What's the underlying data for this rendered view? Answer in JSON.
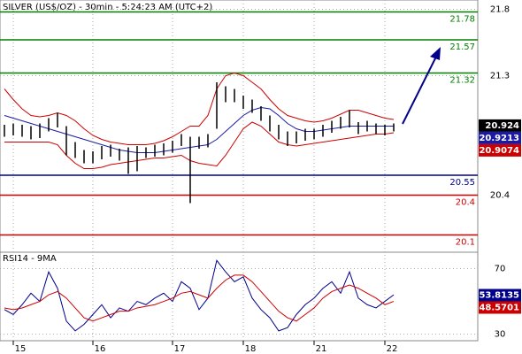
{
  "chart_data": [
    {
      "type": "ohlc",
      "title": "SILVER (US$/OZ) - 30min - 5:24:23 AM (UTC+2)",
      "categories": [
        null,
        "15",
        null,
        null,
        null,
        null,
        null,
        null,
        null,
        null,
        "16",
        null,
        null,
        null,
        null,
        null,
        null,
        null,
        null,
        "17",
        null,
        null,
        null,
        null,
        null,
        null,
        null,
        "18",
        null,
        null,
        null,
        null,
        null,
        null,
        null,
        "21",
        null,
        null,
        null,
        null,
        null,
        null,
        null,
        "22",
        null
      ],
      "high": [
        20.93,
        20.94,
        20.93,
        20.92,
        20.94,
        20.98,
        21.02,
        20.92,
        20.8,
        20.74,
        20.73,
        20.77,
        20.78,
        20.75,
        20.76,
        20.77,
        20.76,
        20.78,
        20.79,
        20.81,
        20.86,
        20.84,
        20.84,
        20.86,
        21.25,
        21.22,
        21.2,
        21.15,
        21.12,
        21.07,
        21.0,
        20.93,
        20.88,
        20.88,
        20.9,
        20.9,
        20.93,
        20.96,
        20.99,
        21.04,
        20.95,
        20.96,
        20.94,
        20.93,
        20.94
      ],
      "low": [
        20.84,
        20.85,
        20.84,
        20.82,
        20.83,
        20.88,
        20.91,
        20.7,
        20.68,
        20.64,
        20.64,
        20.67,
        20.69,
        20.66,
        20.56,
        20.58,
        20.68,
        20.69,
        20.7,
        20.72,
        20.77,
        20.34,
        20.75,
        20.76,
        20.9,
        21.1,
        21.1,
        21.05,
        21.02,
        20.96,
        20.88,
        20.82,
        20.77,
        20.79,
        20.81,
        20.82,
        20.84,
        20.87,
        20.9,
        20.91,
        20.86,
        20.88,
        20.86,
        20.85,
        20.88
      ],
      "upper_band": [
        21.2,
        21.12,
        21.05,
        21.0,
        20.99,
        21.0,
        21.02,
        21.0,
        20.96,
        20.9,
        20.85,
        20.82,
        20.8,
        20.79,
        20.78,
        20.78,
        20.78,
        20.79,
        20.81,
        20.84,
        20.88,
        20.92,
        20.92,
        21.0,
        21.2,
        21.3,
        21.32,
        21.3,
        21.25,
        21.2,
        21.12,
        21.05,
        21.0,
        20.98,
        20.96,
        20.95,
        20.96,
        20.98,
        21.01,
        21.04,
        21.04,
        21.02,
        21.0,
        20.98,
        20.97
      ],
      "lower_band": [
        20.8,
        20.8,
        20.8,
        20.8,
        20.8,
        20.8,
        20.78,
        20.7,
        20.64,
        20.6,
        20.6,
        20.61,
        20.63,
        20.64,
        20.65,
        20.66,
        20.67,
        20.68,
        20.68,
        20.69,
        20.7,
        20.66,
        20.64,
        20.63,
        20.62,
        20.7,
        20.8,
        20.9,
        20.95,
        20.92,
        20.86,
        20.8,
        20.78,
        20.77,
        20.78,
        20.79,
        20.8,
        20.81,
        20.82,
        20.83,
        20.84,
        20.85,
        20.86,
        20.86,
        20.87
      ],
      "ma": [
        21.0,
        20.98,
        20.96,
        20.94,
        20.92,
        20.9,
        20.88,
        20.86,
        20.84,
        20.82,
        20.8,
        20.78,
        20.76,
        20.74,
        20.73,
        20.72,
        20.72,
        20.72,
        20.73,
        20.74,
        20.75,
        20.76,
        20.77,
        20.78,
        20.82,
        20.88,
        20.94,
        21.0,
        21.04,
        21.06,
        21.05,
        21.0,
        20.94,
        20.9,
        20.88,
        20.88,
        20.89,
        20.9,
        20.91,
        20.92,
        20.92,
        20.92,
        20.92,
        20.92,
        20.92
      ],
      "bar_color": "#000000",
      "band_color": "#cc0000",
      "ma_color": "#1a1aa6",
      "ylim": [
        19.97,
        21.87
      ],
      "yticks": [
        20.4,
        21.3,
        21.8
      ],
      "grid": true,
      "levels": [
        {
          "value": 21.78,
          "color": "#008000"
        },
        {
          "value": 21.57,
          "color": "#008000"
        },
        {
          "value": 21.32,
          "color": "#008000"
        },
        {
          "value": 20.55,
          "color": "#00008b"
        },
        {
          "value": 20.4,
          "color": "#cc0000"
        },
        {
          "value": 20.1,
          "color": "#cc0000"
        }
      ],
      "last_values": [
        {
          "value": 20.924,
          "color": "#000000"
        },
        {
          "value": 20.9213,
          "color": "#1a1aa6"
        },
        {
          "value": 20.9074,
          "color": "#cc0000"
        }
      ]
    },
    {
      "type": "line",
      "title": "RSI14 - 9MA",
      "series": [
        {
          "color": "#00008b",
          "values": [
            45,
            42,
            48,
            55,
            50,
            68,
            58,
            38,
            32,
            36,
            42,
            48,
            40,
            46,
            44,
            50,
            48,
            52,
            55,
            50,
            62,
            58,
            45,
            52,
            75,
            68,
            62,
            65,
            52,
            45,
            40,
            32,
            34,
            42,
            48,
            52,
            58,
            62,
            55,
            68,
            52,
            48,
            46,
            50,
            54
          ]
        },
        {
          "color": "#cc0000",
          "values": [
            46,
            45,
            46,
            48,
            50,
            54,
            56,
            52,
            46,
            40,
            38,
            40,
            42,
            44,
            44,
            46,
            47,
            48,
            50,
            52,
            55,
            56,
            54,
            52,
            58,
            63,
            66,
            66,
            62,
            56,
            50,
            44,
            40,
            38,
            42,
            46,
            52,
            56,
            58,
            60,
            58,
            55,
            52,
            48,
            50
          ]
        }
      ],
      "ylim": [
        26,
        80
      ],
      "yticks": [
        30,
        70
      ],
      "grid": true,
      "last_values": [
        {
          "value": 53.8135,
          "color": "#00008b"
        },
        {
          "value": 48.5701,
          "color": "#cc0000"
        }
      ]
    }
  ]
}
